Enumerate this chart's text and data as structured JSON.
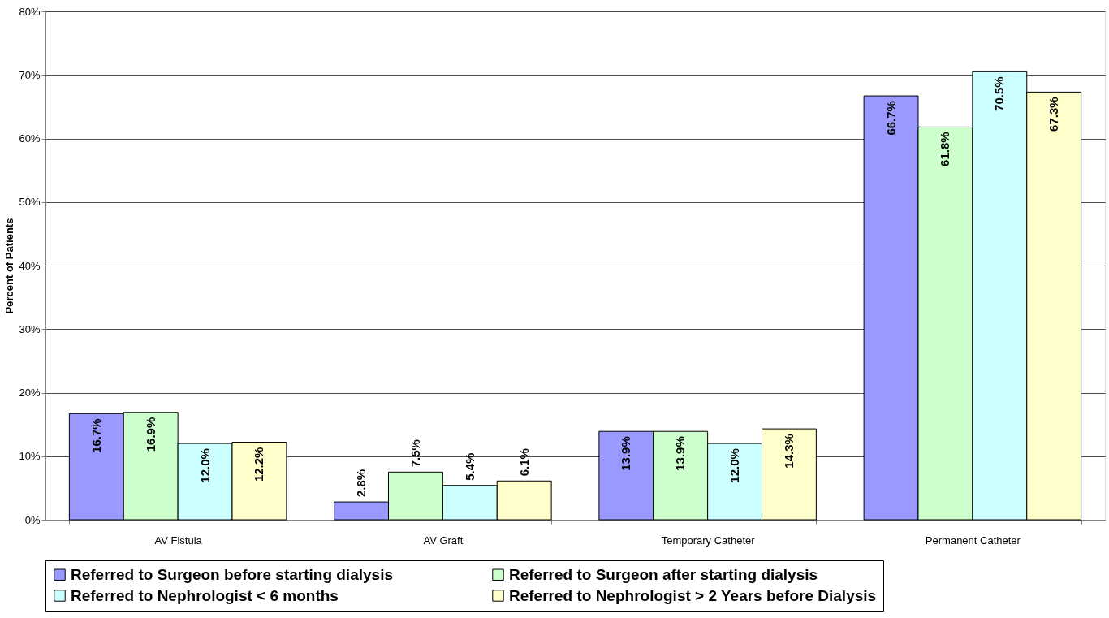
{
  "chart_data": {
    "type": "bar",
    "ylabel": "Percent of Patients",
    "categories": [
      "AV Fistula",
      "AV Graft",
      "Temporary Catheter",
      "Permanent Catheter"
    ],
    "series": [
      {
        "name": "Referred to Surgeon before starting dialysis",
        "color": "#9999ff",
        "values": [
          16.7,
          2.8,
          13.9,
          66.7
        ],
        "value_labels": [
          "16.7%",
          "2.8%",
          "13.9%",
          "66.7%"
        ]
      },
      {
        "name": "Referred to Surgeon after starting dialysis",
        "color": "#ccffcc",
        "values": [
          16.9,
          7.5,
          13.9,
          61.8
        ],
        "value_labels": [
          "16.9%",
          "7.5%",
          "13.9%",
          "61.8%"
        ]
      },
      {
        "name": "Referred to Nephrologist < 6 months",
        "color": "#ccffff",
        "values": [
          12.0,
          5.4,
          12.0,
          70.5
        ],
        "value_labels": [
          "12.0%",
          "5.4%",
          "12.0%",
          "70.5%"
        ]
      },
      {
        "name": "Referred to Nephrologist > 2 Years before Dialysis",
        "color": "#ffffcc",
        "values": [
          12.2,
          6.1,
          14.3,
          67.3
        ],
        "value_labels": [
          "12.2%",
          "6.1%",
          "14.3%",
          "67.3%"
        ]
      }
    ],
    "ylim": [
      0,
      80
    ],
    "yticks": [
      {
        "value": 0,
        "label": "0%"
      },
      {
        "value": 10,
        "label": "10%"
      },
      {
        "value": 20,
        "label": "20%"
      },
      {
        "value": 30,
        "label": "30%"
      },
      {
        "value": 40,
        "label": "40%"
      },
      {
        "value": 50,
        "label": "50%"
      },
      {
        "value": 60,
        "label": "60%"
      },
      {
        "value": 70,
        "label": "70%"
      },
      {
        "value": 80,
        "label": "80%"
      }
    ],
    "grid": "y",
    "legend": "bottom"
  }
}
